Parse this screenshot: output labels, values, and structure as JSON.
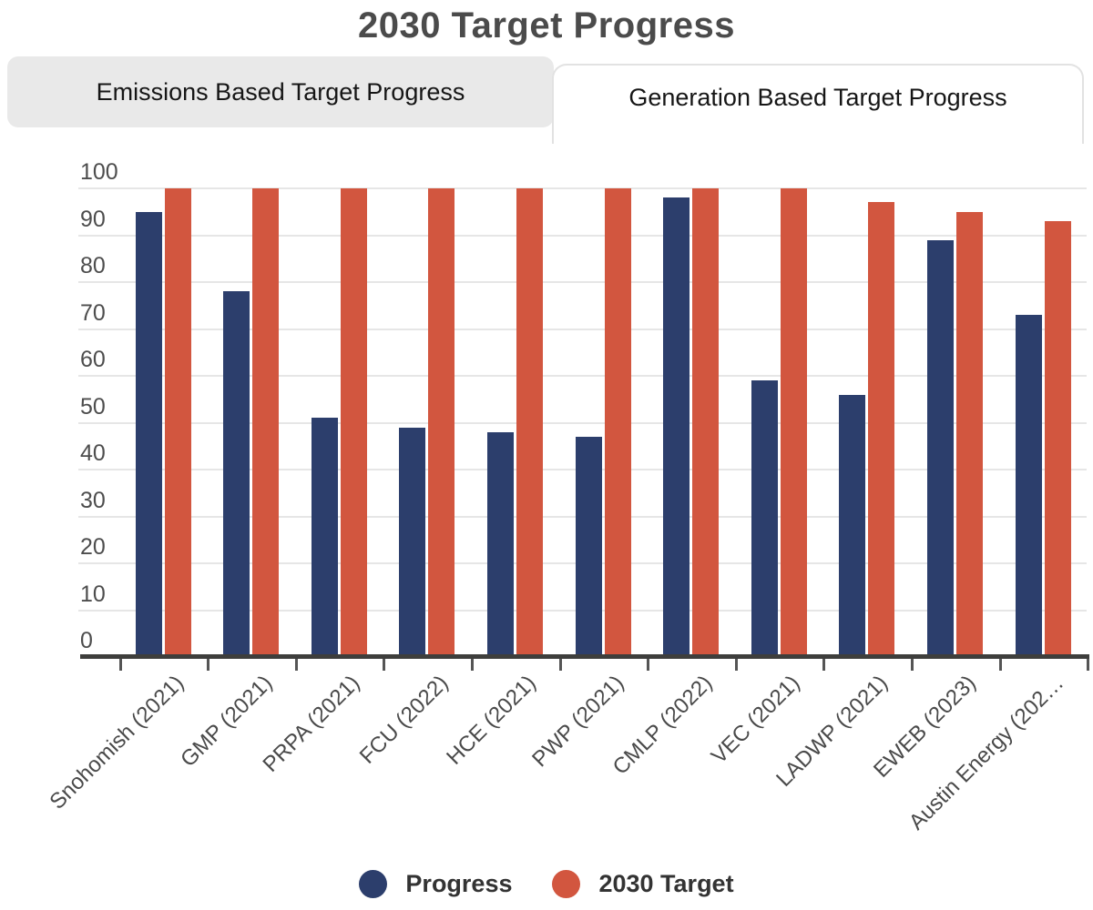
{
  "title": "2030 Target Progress",
  "tabs": [
    {
      "label": "Emissions Based Target Progress",
      "active": false
    },
    {
      "label": "Generation Based Target Progress",
      "active": true
    }
  ],
  "chart_data": {
    "type": "bar",
    "title": "2030 Target Progress",
    "categories": [
      "Snohomish (2021)",
      "GMP (2021)",
      "PRPA (2021)",
      "FCU (2022)",
      "HCE (2021)",
      "PWP (2021)",
      "CMLP (2022)",
      "VEC (2021)",
      "LADWP (2021)",
      "EWEB (2023)",
      "Austin Energy (202…"
    ],
    "series": [
      {
        "name": "Progress",
        "color": "#2c3e6c",
        "values": [
          95,
          78,
          51,
          49,
          48,
          47,
          98,
          59,
          56,
          89,
          73
        ]
      },
      {
        "name": "2030 Target",
        "color": "#d2563f",
        "values": [
          100,
          100,
          100,
          100,
          100,
          100,
          100,
          100,
          97,
          95,
          93
        ]
      }
    ],
    "xlabel": "",
    "ylabel": "",
    "ylim": [
      0,
      100
    ],
    "yticks": [
      0,
      10,
      20,
      30,
      40,
      50,
      60,
      70,
      80,
      90,
      100
    ],
    "grid": true,
    "legend_position": "bottom",
    "colors": {
      "grid": "#e6e6e6",
      "axis": "#3e3e3c",
      "tick_text": "#4d4d4d"
    }
  }
}
